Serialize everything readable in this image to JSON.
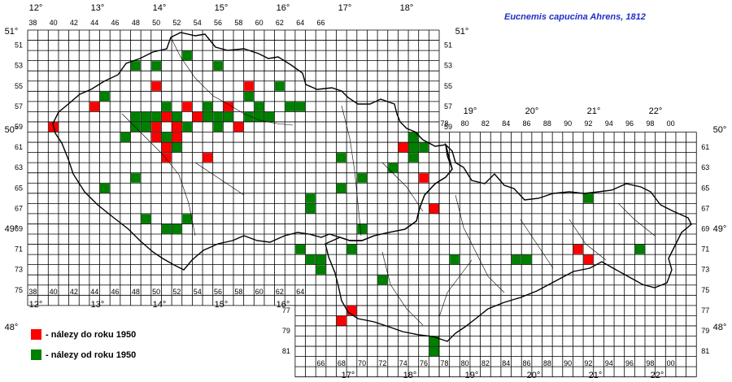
{
  "title": "Eucnemis capucina Ahrens, 1812",
  "legend": [
    {
      "label": "- nálezy do roku 1950",
      "color": "#ff0000"
    },
    {
      "label": "- nálezy od roku 1950",
      "color": "#008000"
    }
  ],
  "cz_top_labels": [
    "38",
    "40",
    "42",
    "44",
    "46",
    "48",
    "50",
    "52",
    "54",
    "56",
    "58",
    "60",
    "62",
    "64",
    "66"
  ],
  "cz_bottom_labels": [
    "38",
    "40",
    "42",
    "44",
    "46",
    "48",
    "50",
    "52",
    "54",
    "56",
    "58",
    "60",
    "62",
    "64"
  ],
  "cz_row_labels": [
    "51",
    "53",
    "55",
    "57",
    "59",
    "61",
    "63",
    "65",
    "67",
    "69",
    "71",
    "73",
    "75"
  ],
  "sk_top_labels": [
    "78",
    "80",
    "82",
    "84",
    "86",
    "88",
    "90",
    "92",
    "94",
    "96",
    "98",
    "00"
  ],
  "sk_bottom_labels": [
    "66",
    "68",
    "70",
    "72",
    "74",
    "76",
    "78",
    "80",
    "82",
    "84",
    "86",
    "88",
    "90",
    "92",
    "94",
    "96",
    "98",
    "00"
  ],
  "sk_row_labels_right": [
    "61",
    "63",
    "65",
    "67",
    "69",
    "71",
    "73",
    "75",
    "77",
    "79",
    "81"
  ],
  "sk_row_labels_left": [
    "77",
    "79",
    "81"
  ],
  "deg_top_cz": [
    "12°",
    "13°",
    "14°",
    "15°",
    "16°",
    "17°",
    "18°"
  ],
  "deg_top_sk": [
    "19°",
    "20°",
    "21°",
    "22°"
  ],
  "deg_bottom_cz": [
    "12°",
    "13°",
    "14°",
    "15°",
    "16°"
  ],
  "deg_bottom_sk": [
    "17°",
    "18°",
    "19°",
    "20°",
    "21°",
    "22°"
  ],
  "lat_left": [
    "51°",
    "50°",
    "49°",
    "48°"
  ],
  "lat_right": [
    "51°",
    "50°",
    "49°",
    "48°"
  ],
  "records_before_1950": [
    [
      40,
      59
    ],
    [
      44,
      57
    ],
    [
      50,
      55
    ],
    [
      50,
      59
    ],
    [
      51,
      58
    ],
    [
      53,
      57
    ],
    [
      52,
      59
    ],
    [
      54,
      58
    ],
    [
      57,
      57
    ],
    [
      58,
      59
    ],
    [
      59,
      55
    ],
    [
      74,
      61
    ],
    [
      76,
      64
    ],
    [
      77,
      67
    ],
    [
      51,
      61
    ],
    [
      51,
      62
    ],
    [
      55,
      62
    ],
    [
      68,
      78
    ],
    [
      69,
      77
    ],
    [
      91,
      71
    ],
    [
      92,
      72
    ],
    [
      50,
      60
    ],
    [
      52,
      60
    ]
  ],
  "records_since_1950": [
    [
      48,
      53
    ],
    [
      50,
      53
    ],
    [
      53,
      52
    ],
    [
      56,
      53
    ],
    [
      59,
      56
    ],
    [
      62,
      55
    ],
    [
      63,
      57
    ],
    [
      45,
      56
    ],
    [
      45,
      65
    ],
    [
      48,
      58
    ],
    [
      48,
      59
    ],
    [
      49,
      58
    ],
    [
      49,
      59
    ],
    [
      50,
      58
    ],
    [
      51,
      57
    ],
    [
      51,
      60
    ],
    [
      52,
      58
    ],
    [
      52,
      61
    ],
    [
      53,
      59
    ],
    [
      55,
      57
    ],
    [
      55,
      58
    ],
    [
      56,
      58
    ],
    [
      56,
      59
    ],
    [
      57,
      58
    ],
    [
      59,
      58
    ],
    [
      60,
      57
    ],
    [
      60,
      58
    ],
    [
      61,
      58
    ],
    [
      64,
      57
    ],
    [
      47,
      60
    ],
    [
      50,
      60
    ],
    [
      48,
      64
    ],
    [
      49,
      68
    ],
    [
      51,
      69
    ],
    [
      52,
      69
    ],
    [
      53,
      68
    ],
    [
      65,
      66
    ],
    [
      65,
      67
    ],
    [
      68,
      62
    ],
    [
      68,
      65
    ],
    [
      70,
      64
    ],
    [
      70,
      69
    ],
    [
      73,
      63
    ],
    [
      75,
      61
    ],
    [
      75,
      62
    ],
    [
      76,
      61
    ],
    [
      75,
      60
    ],
    [
      64,
      71
    ],
    [
      65,
      72
    ],
    [
      66,
      72
    ],
    [
      66,
      73
    ],
    [
      69,
      71
    ],
    [
      72,
      74
    ],
    [
      79,
      72
    ],
    [
      85,
      72
    ],
    [
      86,
      72
    ],
    [
      92,
      66
    ],
    [
      97,
      71
    ],
    [
      77,
      80
    ],
    [
      77,
      81
    ]
  ]
}
